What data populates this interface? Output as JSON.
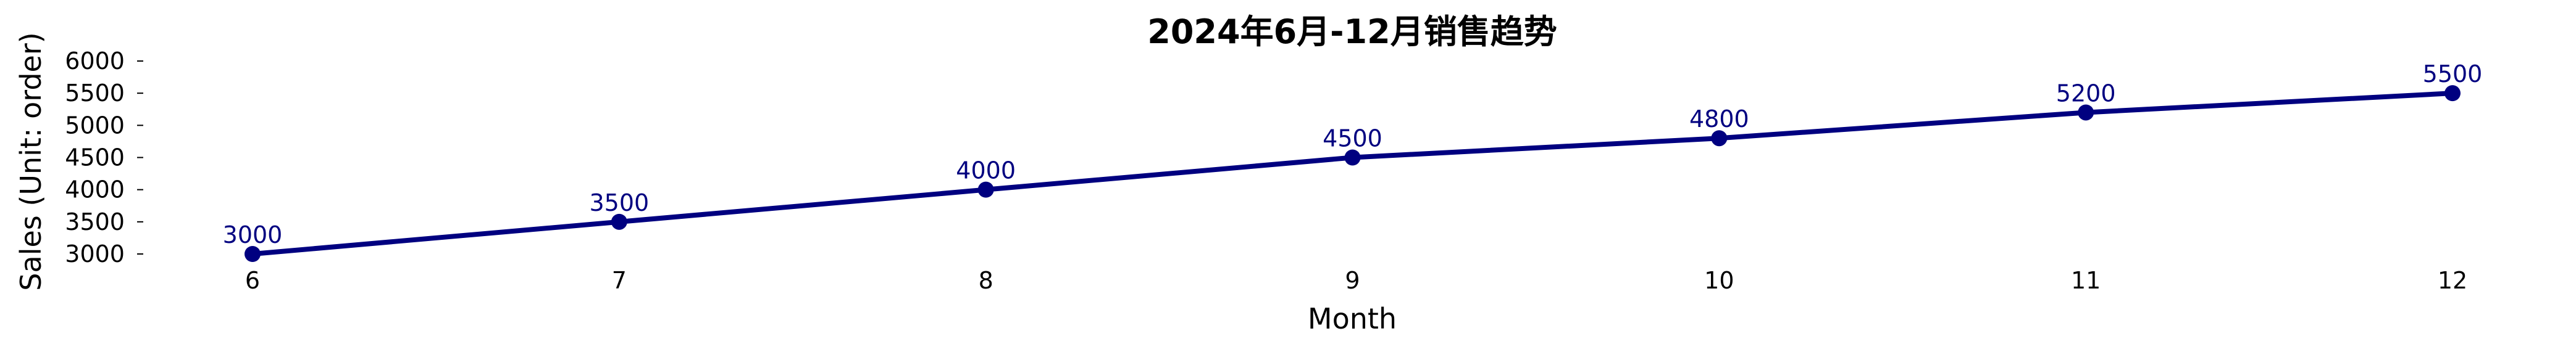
{
  "chart_data": {
    "type": "line",
    "title": "2024年6月-12月销售趋势",
    "xlabel": "Month",
    "ylabel": "Sales (Unit: order)",
    "x": [
      6,
      7,
      8,
      9,
      10,
      11,
      12
    ],
    "series": [
      {
        "values": [
          3000,
          3500,
          4000,
          4500,
          4800,
          5200,
          5500
        ],
        "color": "#000080"
      }
    ],
    "ylim": [
      3000,
      6000
    ],
    "yticks": [
      3000,
      3500,
      4000,
      4500,
      5000,
      5500,
      6000
    ],
    "grid": false,
    "legend": false,
    "marker": "circle",
    "data_labels": true
  }
}
